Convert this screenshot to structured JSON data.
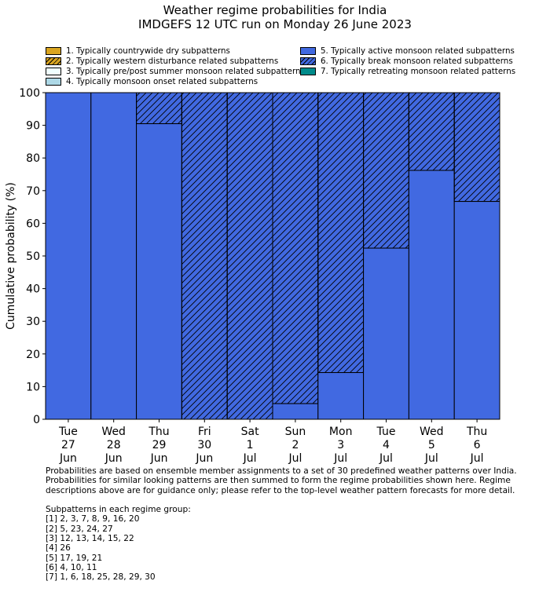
{
  "chart_data": {
    "type": "bar",
    "stacked": true,
    "title": "Weather regime probabilities for India",
    "subtitle": "IMDGEFS 12 UTC run on Monday 26 June 2023",
    "ylabel": "Cumulative probability (%)",
    "xlabel": "",
    "ylim": [
      0,
      100
    ],
    "yticks": [
      0,
      10,
      20,
      30,
      40,
      50,
      60,
      70,
      80,
      90,
      100
    ],
    "categories": [
      [
        "Tue",
        "27",
        "Jun"
      ],
      [
        "Wed",
        "28",
        "Jun"
      ],
      [
        "Thu",
        "29",
        "Jun"
      ],
      [
        "Fri",
        "30",
        "Jun"
      ],
      [
        "Sat",
        "1",
        "Jul"
      ],
      [
        "Sun",
        "2",
        "Jul"
      ],
      [
        "Mon",
        "3",
        "Jul"
      ],
      [
        "Tue",
        "4",
        "Jul"
      ],
      [
        "Wed",
        "5",
        "Jul"
      ],
      [
        "Thu",
        "6",
        "Jul"
      ]
    ],
    "legend": [
      {
        "label": "1. Typically countrywide dry subpatterns",
        "color": "#daa520",
        "hatch": false
      },
      {
        "label": "2. Typically western disturbance related subpatterns",
        "color": "#daa520",
        "hatch": true
      },
      {
        "label": "3. Typically pre/post summer monsoon related subpatterns",
        "color": "#f0ffff",
        "hatch": false
      },
      {
        "label": "4. Typically monsoon onset related subpatterns",
        "color": "#add8e6",
        "hatch": false
      },
      {
        "label": "5. Typically active monsoon related subpatterns",
        "color": "#4169e1",
        "hatch": false
      },
      {
        "label": "6. Typically break monsoon related subpatterns",
        "color": "#4169e1",
        "hatch": true
      },
      {
        "label": "7. Typically retreating monsoon related patterns",
        "color": "#008b8b",
        "hatch": false
      }
    ],
    "series": [
      {
        "name": "5. Typically active monsoon related subpatterns",
        "values": [
          100,
          100,
          90.5,
          0,
          0,
          4.8,
          14.3,
          52.4,
          76.2,
          66.7
        ]
      },
      {
        "name": "6. Typically break monsoon related subpatterns",
        "values": [
          0,
          0,
          9.5,
          100,
          100,
          95.2,
          85.7,
          47.6,
          23.8,
          33.3
        ]
      }
    ]
  },
  "notes": "Probabilities are based on ensemble member assignments to a set of 30 predefined weather patterns over India.\nProbabilities for similar looking patterns are then summed to form the regime probabilities shown here. Regime\ndescriptions above are for guidance only; please refer to the top-level weather pattern forecasts for more detail.\n\nSubpatterns in each regime group:\n[1] 2, 3, 7, 8, 9, 16, 20\n[2] 5, 23, 24, 27\n[3] 12, 13, 14, 15, 22\n[4] 26\n[5] 17, 19, 21\n[6] 4, 10, 11\n[7] 1, 6, 18, 25, 28, 29, 30"
}
